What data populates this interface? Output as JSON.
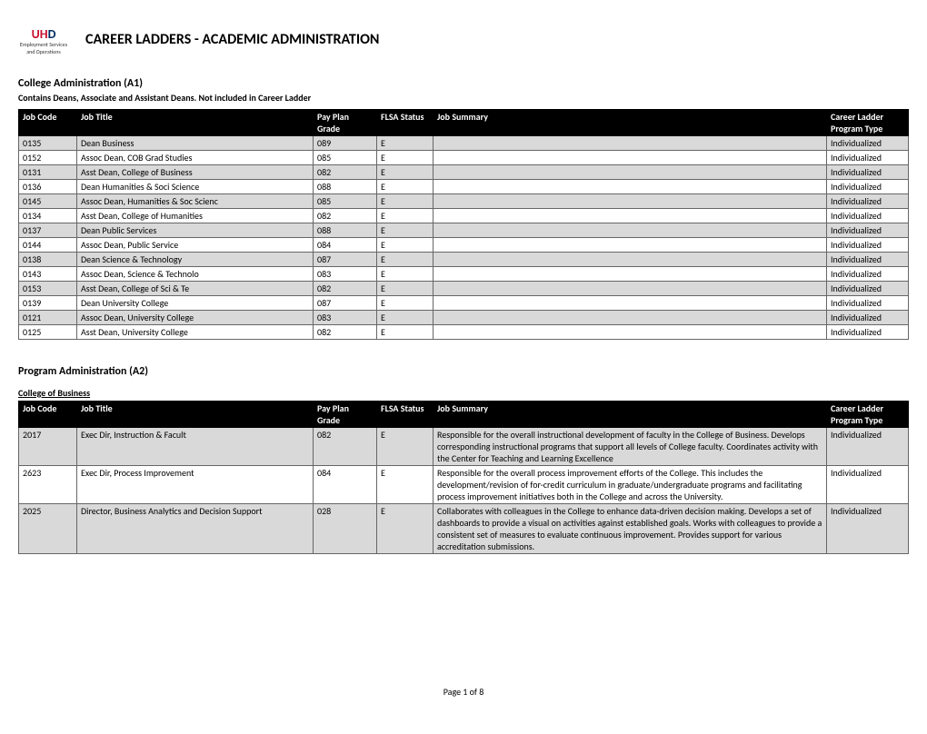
{
  "header": {
    "logo": {
      "uh_red": "UH",
      "uh_navy": "D",
      "line2": "Employment Services",
      "line3": "and Operations"
    },
    "title": "CAREER LADDERS - ACADEMIC ADMINISTRATION"
  },
  "columns": {
    "code": "Job Code",
    "title": "Job Title",
    "grade": "Pay Plan Grade",
    "flsa": "FLSA Status",
    "summary": "Job Summary",
    "ladder": "Career Ladder Program Type"
  },
  "section1": {
    "title": "College Administration (A1)",
    "subtitle": "Contains Deans, Associate and Assistant Deans. Not included in Career Ladder",
    "rows": [
      {
        "code": "0135",
        "title": "Dean Business",
        "grade": "089",
        "flsa": "E",
        "summary": "",
        "ladder": "Individualized"
      },
      {
        "code": "0152",
        "title": "Assoc Dean, COB Grad Studies",
        "grade": "085",
        "flsa": "E",
        "summary": "",
        "ladder": "Individualized"
      },
      {
        "code": "0131",
        "title": "Asst Dean, College of Business",
        "grade": "082",
        "flsa": "E",
        "summary": "",
        "ladder": "Individualized"
      },
      {
        "code": "0136",
        "title": "Dean Humanities & Soci Science",
        "grade": "088",
        "flsa": "E",
        "summary": "",
        "ladder": "Individualized"
      },
      {
        "code": "0145",
        "title": "Assoc Dean, Humanities & Soc Scienc",
        "grade": "085",
        "flsa": "E",
        "summary": "",
        "ladder": "Individualized"
      },
      {
        "code": "0134",
        "title": "Asst Dean, College of Humanities",
        "grade": "082",
        "flsa": "E",
        "summary": "",
        "ladder": "Individualized"
      },
      {
        "code": "0137",
        "title": "Dean Public Services",
        "grade": "088",
        "flsa": "E",
        "summary": "",
        "ladder": "Individualized"
      },
      {
        "code": "0144",
        "title": "Assoc Dean, Public Service",
        "grade": "084",
        "flsa": "E",
        "summary": "",
        "ladder": "Individualized"
      },
      {
        "code": "0138",
        "title": "Dean Science & Technology",
        "grade": "087",
        "flsa": "E",
        "summary": "",
        "ladder": "Individualized"
      },
      {
        "code": "0143",
        "title": "Assoc Dean, Science & Technolo",
        "grade": "083",
        "flsa": "E",
        "summary": "",
        "ladder": "Individualized"
      },
      {
        "code": "0153",
        "title": "Asst Dean, College of Sci & Te",
        "grade": "082",
        "flsa": "E",
        "summary": "",
        "ladder": "Individualized"
      },
      {
        "code": "0139",
        "title": "Dean University College",
        "grade": "087",
        "flsa": "E",
        "summary": "",
        "ladder": "Individualized"
      },
      {
        "code": "0121",
        "title": "Assoc Dean, University College",
        "grade": "083",
        "flsa": "E",
        "summary": "",
        "ladder": "Individualized"
      },
      {
        "code": "0125",
        "title": "Asst Dean, University College",
        "grade": "082",
        "flsa": "E",
        "summary": "",
        "ladder": "Individualized"
      }
    ]
  },
  "section2": {
    "title": "Program Administration (A2)",
    "subheading": "College of Business",
    "rows": [
      {
        "code": "2017",
        "title": "Exec Dir, Instruction & Facult",
        "grade": "082",
        "flsa": "E",
        "summary": "Responsible for the overall instructional development of faculty in the College of Business. Develops corresponding instructional programs that support all levels of College faculty. Coordinates activity with the Center for Teaching and Learning Excellence",
        "ladder": "Individualized"
      },
      {
        "code": "2623",
        "title": "Exec Dir, Process Improvement",
        "grade": "084",
        "flsa": "E",
        "summary": "Responsible for the overall process improvement efforts of the College. This includes the development/revision of for-credit curriculum in graduate/undergraduate programs and facilitating process improvement initiatives both in the College and across the University.",
        "ladder": "Individualized"
      },
      {
        "code": "2025",
        "title": "Director, Business Analytics and Decision Support",
        "grade": "028",
        "flsa": "E",
        "summary": "Collaborates with colleagues in the College to enhance data-driven decision making. Develops a set of dashboards to provide a visual on activities against established goals. Works with colleagues to provide a consistent set of measures to evaluate continuous improvement. Provides support for various accreditation submissions.",
        "ladder": "Individualized"
      }
    ]
  },
  "footer": {
    "page_label": "Page 1 of  8"
  }
}
